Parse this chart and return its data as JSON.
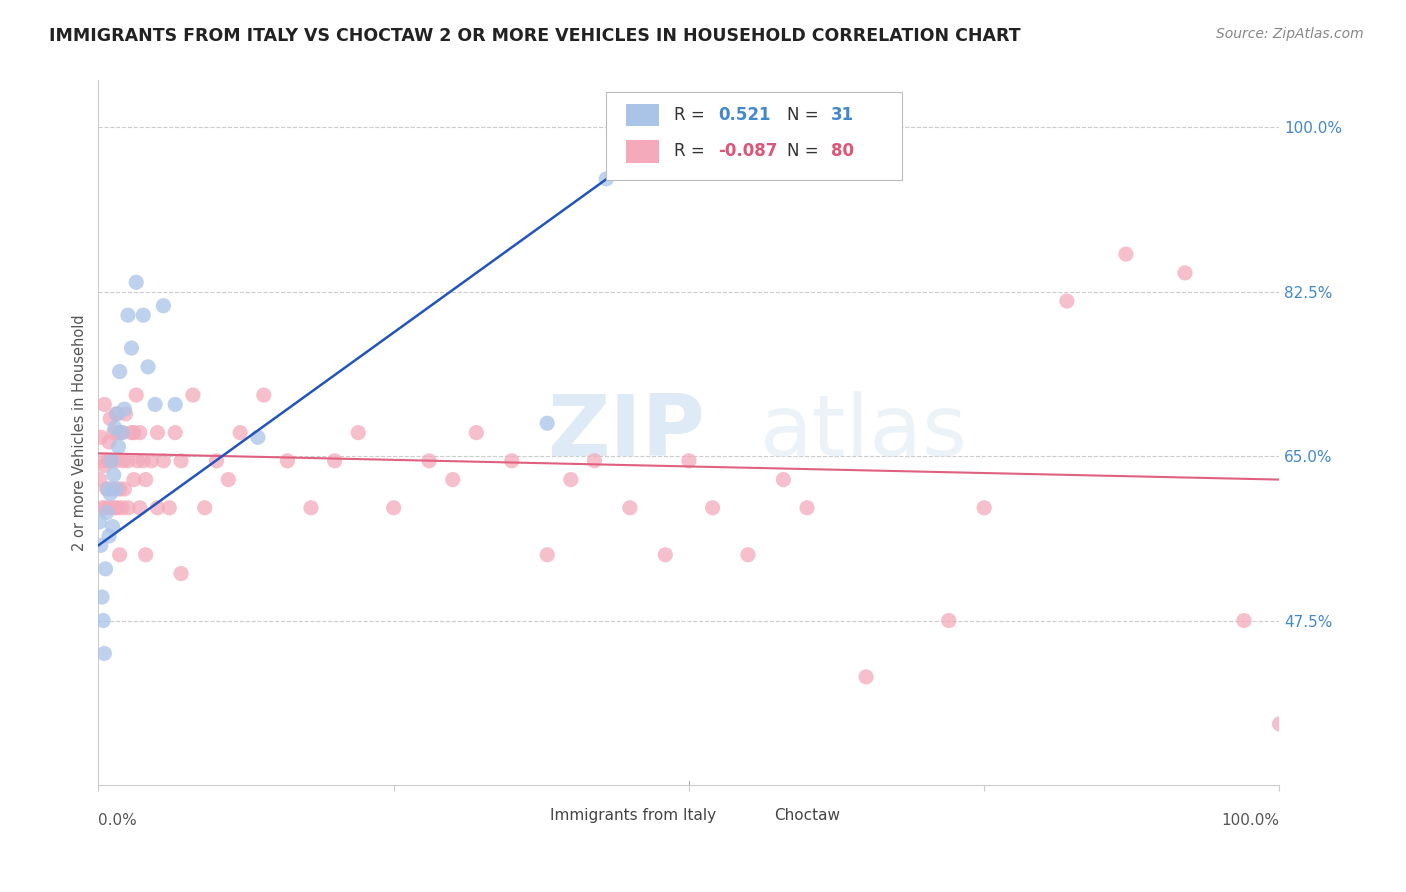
{
  "title": "IMMIGRANTS FROM ITALY VS CHOCTAW 2 OR MORE VEHICLES IN HOUSEHOLD CORRELATION CHART",
  "source": "Source: ZipAtlas.com",
  "ylabel": "2 or more Vehicles in Household",
  "ytick_labels": [
    "100.0%",
    "82.5%",
    "65.0%",
    "47.5%"
  ],
  "ytick_values": [
    1.0,
    0.825,
    0.65,
    0.475
  ],
  "xlim": [
    0.0,
    1.0
  ],
  "ylim": [
    0.3,
    1.05
  ],
  "legend_italy_r": "0.521",
  "legend_italy_n": "31",
  "legend_choctaw_r": "-0.087",
  "legend_choctaw_n": "80",
  "italy_color": "#aac4e8",
  "choctaw_color": "#f4aabb",
  "italy_line_color": "#2255bb",
  "choctaw_line_color": "#e06080",
  "watermark_zip": "ZIP",
  "watermark_atlas": "atlas",
  "italy_x": [
    0.002,
    0.003,
    0.004,
    0.005,
    0.006,
    0.007,
    0.008,
    0.009,
    0.01,
    0.011,
    0.012,
    0.013,
    0.014,
    0.015,
    0.016,
    0.017,
    0.018,
    0.02,
    0.022,
    0.025,
    0.028,
    0.032,
    0.038,
    0.042,
    0.048,
    0.055,
    0.065,
    0.135,
    0.38,
    0.43,
    0.001
  ],
  "italy_y": [
    0.555,
    0.5,
    0.475,
    0.44,
    0.53,
    0.59,
    0.615,
    0.565,
    0.61,
    0.645,
    0.575,
    0.63,
    0.68,
    0.615,
    0.695,
    0.66,
    0.74,
    0.675,
    0.7,
    0.8,
    0.765,
    0.835,
    0.8,
    0.745,
    0.705,
    0.81,
    0.705,
    0.67,
    0.685,
    0.945,
    0.58
  ],
  "choctaw_x": [
    0.001,
    0.002,
    0.003,
    0.004,
    0.005,
    0.005,
    0.006,
    0.007,
    0.008,
    0.009,
    0.01,
    0.01,
    0.011,
    0.012,
    0.013,
    0.014,
    0.015,
    0.015,
    0.016,
    0.017,
    0.018,
    0.018,
    0.02,
    0.02,
    0.021,
    0.022,
    0.023,
    0.025,
    0.025,
    0.028,
    0.03,
    0.03,
    0.032,
    0.033,
    0.035,
    0.035,
    0.038,
    0.04,
    0.04,
    0.045,
    0.05,
    0.05,
    0.055,
    0.06,
    0.065,
    0.07,
    0.08,
    0.09,
    0.1,
    0.11,
    0.12,
    0.14,
    0.16,
    0.18,
    0.2,
    0.22,
    0.25,
    0.28,
    0.3,
    0.32,
    0.38,
    0.4,
    0.42,
    0.45,
    0.48,
    0.5,
    0.52,
    0.55,
    0.58,
    0.6,
    0.65,
    0.72,
    0.75,
    0.82,
    0.87,
    0.92,
    0.97,
    1.0,
    0.35,
    0.07
  ],
  "choctaw_y": [
    0.625,
    0.67,
    0.595,
    0.645,
    0.64,
    0.705,
    0.595,
    0.615,
    0.645,
    0.665,
    0.595,
    0.69,
    0.645,
    0.615,
    0.675,
    0.595,
    0.645,
    0.695,
    0.595,
    0.675,
    0.545,
    0.615,
    0.595,
    0.675,
    0.645,
    0.615,
    0.695,
    0.595,
    0.645,
    0.675,
    0.625,
    0.675,
    0.715,
    0.645,
    0.595,
    0.675,
    0.645,
    0.625,
    0.545,
    0.645,
    0.595,
    0.675,
    0.645,
    0.595,
    0.675,
    0.645,
    0.715,
    0.595,
    0.645,
    0.625,
    0.675,
    0.715,
    0.645,
    0.595,
    0.645,
    0.675,
    0.595,
    0.645,
    0.625,
    0.675,
    0.545,
    0.625,
    0.645,
    0.595,
    0.545,
    0.645,
    0.595,
    0.545,
    0.625,
    0.595,
    0.415,
    0.475,
    0.595,
    0.815,
    0.865,
    0.845,
    0.475,
    0.365,
    0.645,
    0.525
  ],
  "italy_line_x": [
    0.0,
    0.48
  ],
  "italy_line_y": [
    0.555,
    0.99
  ],
  "choctaw_line_x": [
    0.0,
    1.0
  ],
  "choctaw_line_y": [
    0.653,
    0.625
  ]
}
